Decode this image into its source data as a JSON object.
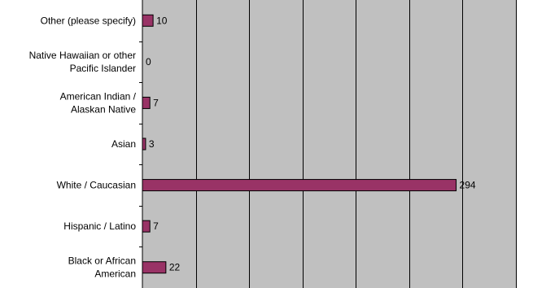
{
  "chart_data": {
    "type": "bar",
    "orientation": "horizontal",
    "title": "",
    "xlabel": "",
    "ylabel": "",
    "categories": [
      "Other (please specify)",
      "Native Hawaiian or other Pacific Islander",
      "American Indian / Alaskan Native",
      "Asian",
      "White / Caucasian",
      "Hispanic / Latino",
      "Black or African American"
    ],
    "category_label_lines": [
      [
        "Other (please specify)"
      ],
      [
        "Native Hawaiian or other",
        "Pacific Islander"
      ],
      [
        "American Indian /",
        "Alaskan Native"
      ],
      [
        "Asian"
      ],
      [
        "White / Caucasian"
      ],
      [
        "Hispanic / Latino"
      ],
      [
        "Black or African",
        "American"
      ]
    ],
    "values": [
      10,
      0,
      7,
      3,
      294,
      7,
      22
    ],
    "xlim": [
      0,
      350
    ],
    "grid": true,
    "legend": "none",
    "colors": {
      "bar": "#993366",
      "bar_stroke": "#000000",
      "plot_bg": "#c0c0c0",
      "gridline": "#000000"
    }
  }
}
